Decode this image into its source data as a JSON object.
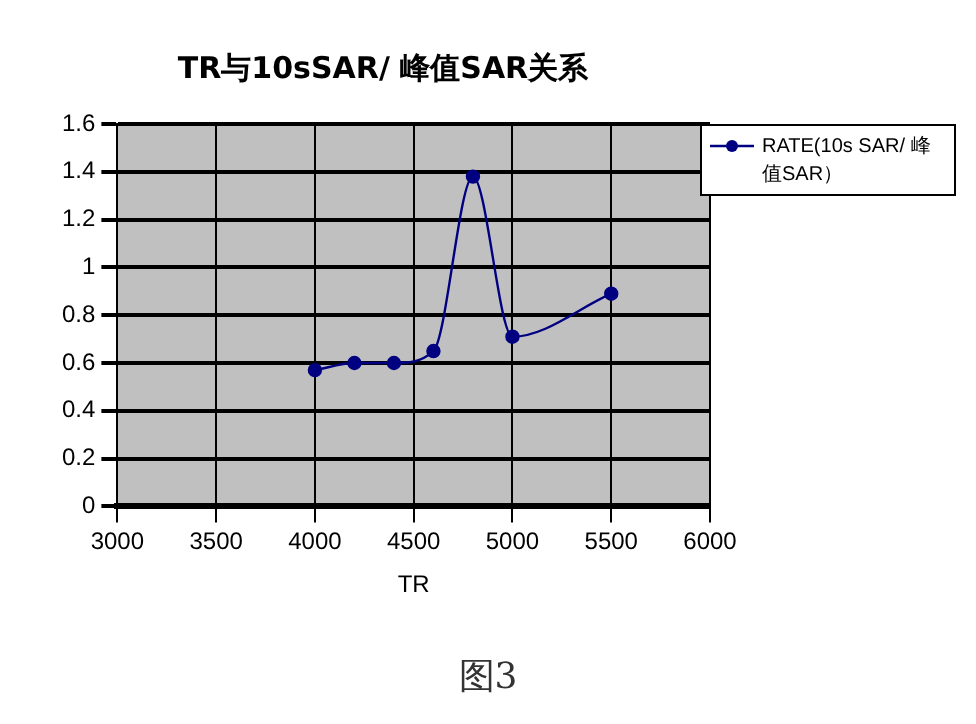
{
  "chart_data": {
    "type": "line",
    "title": "TR与10sSAR/ 峰值SAR关系",
    "xlabel": "TR",
    "annotations": [
      "图3"
    ],
    "series": [
      {
        "name": "RATE(10s SAR/ 峰值SAR）",
        "color": "#000080",
        "x": [
          4000,
          4200,
          4400,
          4600,
          4800,
          5000,
          5500
        ],
        "values": [
          0.57,
          0.6,
          0.6,
          0.65,
          1.38,
          0.71,
          0.89
        ]
      }
    ],
    "xlim": [
      3000,
      6000
    ],
    "xticks": [
      3000,
      3500,
      4000,
      4500,
      5000,
      5500,
      6000
    ],
    "ylim": [
      0,
      1.6
    ],
    "yticks": [
      0,
      0.2,
      0.4,
      0.6,
      0.8,
      1,
      1.2,
      1.4,
      1.6
    ],
    "grid": true,
    "legend": "top right",
    "marker": "circle",
    "line_style": "solid"
  }
}
